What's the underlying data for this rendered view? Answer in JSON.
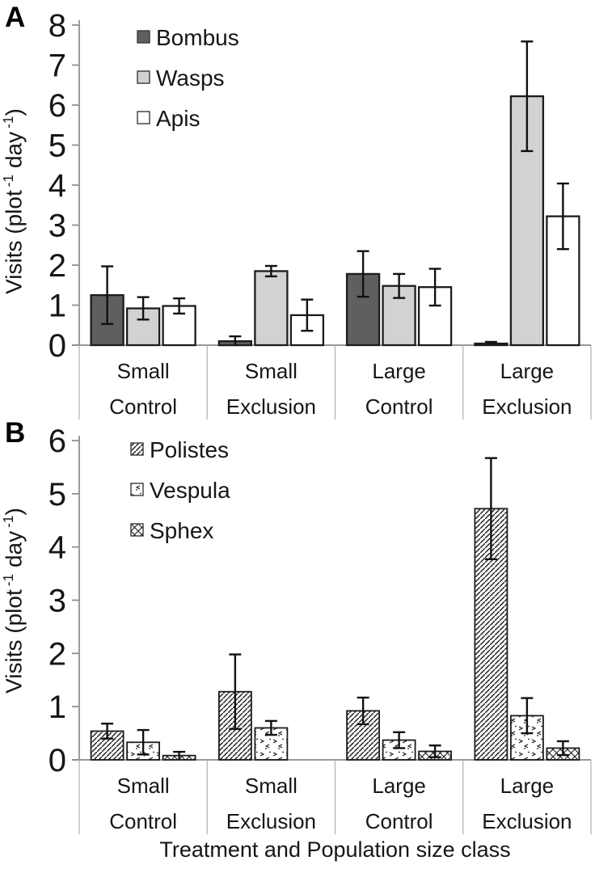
{
  "figure": {
    "panels": [
      {
        "label": "A",
        "ylabel_parts": {
          "prefix": "Visits (plot",
          "sup1": "-1",
          "mid": " day",
          "sup2": "-1",
          "suffix": ")"
        }
      },
      {
        "label": "B",
        "ylabel_parts": {
          "prefix": "Visits (plot",
          "sup1": "-1",
          "mid": " day",
          "sup2": "-1",
          "suffix": ")"
        }
      }
    ],
    "xlabel": "Treatment and Population size class"
  },
  "chart_data": [
    {
      "type": "bar",
      "panel": "A",
      "title": "",
      "xlabel": "",
      "ylabel": "Visits (plot-1 day-1)",
      "ylim": [
        0,
        8
      ],
      "ytick_step": 1,
      "grid": false,
      "legend_position": "top-left-inside",
      "categories": [
        [
          "Small",
          "Control"
        ],
        [
          "Small",
          "Exclusion"
        ],
        [
          "Large",
          "Control"
        ],
        [
          "Large",
          "Exclusion"
        ]
      ],
      "series": [
        {
          "name": "Bombus",
          "style": "solid-dark",
          "values": [
            1.25,
            0.1,
            1.78,
            0.04
          ],
          "errors": [
            0.72,
            0.12,
            0.57,
            0.04
          ]
        },
        {
          "name": "Wasps",
          "style": "solid-light",
          "values": [
            0.92,
            1.85,
            1.48,
            6.22
          ],
          "errors": [
            0.28,
            0.13,
            0.3,
            1.37
          ]
        },
        {
          "name": "Apis",
          "style": "solid-white",
          "values": [
            0.98,
            0.75,
            1.45,
            3.22
          ],
          "errors": [
            0.19,
            0.39,
            0.46,
            0.82
          ]
        }
      ]
    },
    {
      "type": "bar",
      "panel": "B",
      "title": "",
      "xlabel": "Treatment and Population size class",
      "ylabel": "Visits (plot-1 day-1)",
      "ylim": [
        0,
        6
      ],
      "ytick_step": 1,
      "grid": false,
      "legend_position": "top-left-inside",
      "categories": [
        [
          "Small",
          "Control"
        ],
        [
          "Small",
          "Exclusion"
        ],
        [
          "Large",
          "Control"
        ],
        [
          "Large",
          "Exclusion"
        ]
      ],
      "series": [
        {
          "name": "Polistes",
          "style": "hatch",
          "values": [
            0.54,
            1.28,
            0.92,
            4.72
          ],
          "errors": [
            0.14,
            0.7,
            0.25,
            0.95
          ]
        },
        {
          "name": "Vespula",
          "style": "speckle",
          "values": [
            0.33,
            0.6,
            0.37,
            0.83
          ],
          "errors": [
            0.23,
            0.13,
            0.15,
            0.33
          ]
        },
        {
          "name": "Sphex",
          "style": "crosshatch",
          "values": [
            0.08,
            0.0,
            0.16,
            0.22
          ],
          "errors": [
            0.07,
            0.0,
            0.11,
            0.13
          ]
        }
      ]
    }
  ],
  "colors": {
    "dark_gray": "#5f5f5f",
    "light_gray": "#d2d2d2",
    "white": "#ffffff",
    "bar_border": "#1c1c1c",
    "error_bar": "#111111",
    "axis": "#8a8a8a",
    "separator": "#b0b0b0",
    "text": "#161616"
  }
}
